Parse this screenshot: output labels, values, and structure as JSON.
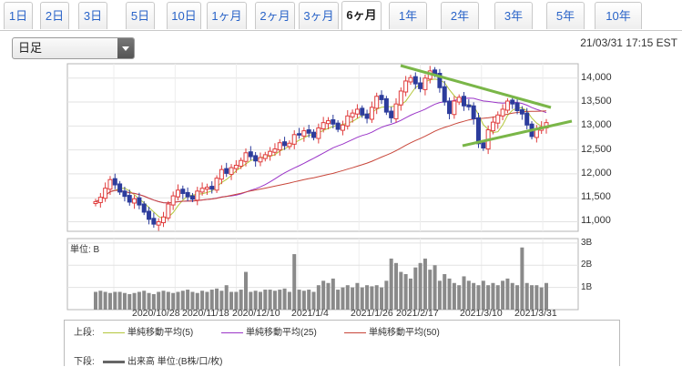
{
  "tabs": [
    {
      "label": "1日",
      "active": false
    },
    {
      "label": "2日",
      "active": false
    },
    {
      "label": "3日",
      "active": false
    },
    {
      "label": "5日",
      "active": false
    },
    {
      "label": "10日",
      "active": false
    },
    {
      "label": "1ヶ月",
      "active": false
    },
    {
      "label": "2ヶ月",
      "active": false
    },
    {
      "label": "3ヶ月",
      "active": false
    },
    {
      "label": "6ヶ月",
      "active": true
    },
    {
      "label": "1年",
      "active": false
    },
    {
      "label": "2年",
      "active": false
    },
    {
      "label": "3年",
      "active": false
    },
    {
      "label": "5年",
      "active": false
    },
    {
      "label": "10年",
      "active": false
    }
  ],
  "period_select": {
    "value": "日足"
  },
  "timestamp": "21/03/31 17:15 EST",
  "price_axis": {
    "ticks": [
      "14,000",
      "13,500",
      "13,000",
      "12,500",
      "12,000",
      "11,500",
      "11,000"
    ]
  },
  "volume_axis": {
    "unit_label": "単位: B",
    "ticks": [
      "3B",
      "2B",
      "1B"
    ]
  },
  "date_axis": {
    "ticks": [
      "2020/10/28",
      "2020/11/18",
      "2020/12/10",
      "2021/1/4",
      "2021/1/26",
      "2021/2/17",
      "2021/3/10",
      "2021/3/31"
    ]
  },
  "legend": {
    "upper_label": "上段:",
    "lower_label": "下段:",
    "items": [
      {
        "label": "単純移動平均(5)",
        "color": "#b4c73c"
      },
      {
        "label": "単純移動平均(25)",
        "color": "#9b36c8"
      },
      {
        "label": "単純移動平均(50)",
        "color": "#c8463a"
      }
    ],
    "volume_item": {
      "label": "出来高 単位:(B株/口/枚)",
      "color": "#666666"
    }
  },
  "colors": {
    "up": "#e03c3c",
    "down": "#2c3c9c",
    "trendline": "#7ab648"
  },
  "chart_data": {
    "type": "candlestick",
    "price_range": [
      10800,
      14300
    ],
    "volume_range": [
      0,
      3.2
    ],
    "closes": [
      11420,
      11510,
      11700,
      11880,
      11770,
      11620,
      11530,
      11410,
      11480,
      11350,
      11200,
      11050,
      10950,
      11000,
      11100,
      11370,
      11540,
      11660,
      11590,
      11520,
      11470,
      11640,
      11700,
      11720,
      11680,
      11910,
      12090,
      12010,
      12130,
      12180,
      12280,
      12440,
      12360,
      12270,
      12340,
      12400,
      12470,
      12520,
      12650,
      12590,
      12640,
      12820,
      12810,
      12900,
      12850,
      12760,
      12960,
      13070,
      13110,
      13040,
      12930,
      13020,
      13210,
      13270,
      13350,
      13230,
      13160,
      13390,
      13620,
      13550,
      13290,
      13170,
      13460,
      13730,
      13940,
      14010,
      13880,
      13780,
      14000,
      14150,
      14080,
      13800,
      13500,
      13260,
      13520,
      13600,
      13420,
      13400,
      13150,
      12630,
      12540,
      12920,
      13080,
      13230,
      13350,
      13520,
      13460,
      13320,
      13250,
      13020,
      12780,
      12930,
      12980,
      13070
    ],
    "volumes": [
      0.8,
      0.85,
      0.8,
      0.75,
      0.8,
      0.8,
      0.75,
      0.7,
      0.75,
      0.8,
      0.85,
      0.75,
      0.7,
      0.8,
      0.85,
      0.8,
      0.75,
      0.8,
      0.85,
      0.9,
      0.8,
      0.75,
      0.85,
      0.8,
      0.9,
      0.95,
      0.85,
      1.1,
      0.8,
      0.8,
      0.9,
      1.7,
      0.8,
      0.85,
      0.8,
      0.9,
      0.9,
      0.85,
      0.9,
      0.95,
      0.8,
      2.5,
      0.9,
      0.85,
      0.9,
      0.8,
      1.1,
      1.3,
      1.2,
      1.4,
      0.9,
      1.0,
      1.1,
      1.0,
      1.2,
      1.0,
      1.1,
      1.05,
      1.1,
      1.0,
      1.3,
      2.3,
      2.1,
      1.7,
      1.6,
      1.4,
      1.9,
      2.1,
      2.3,
      1.8,
      2.0,
      1.3,
      1.6,
      1.4,
      1.2,
      1.1,
      1.5,
      1.3,
      1.2,
      1.1,
      1.3,
      1.1,
      1.2,
      1.1,
      1.3,
      1.4,
      1.2,
      1.1,
      2.8,
      1.2,
      1.1,
      1.1,
      1.0,
      1.2
    ]
  }
}
